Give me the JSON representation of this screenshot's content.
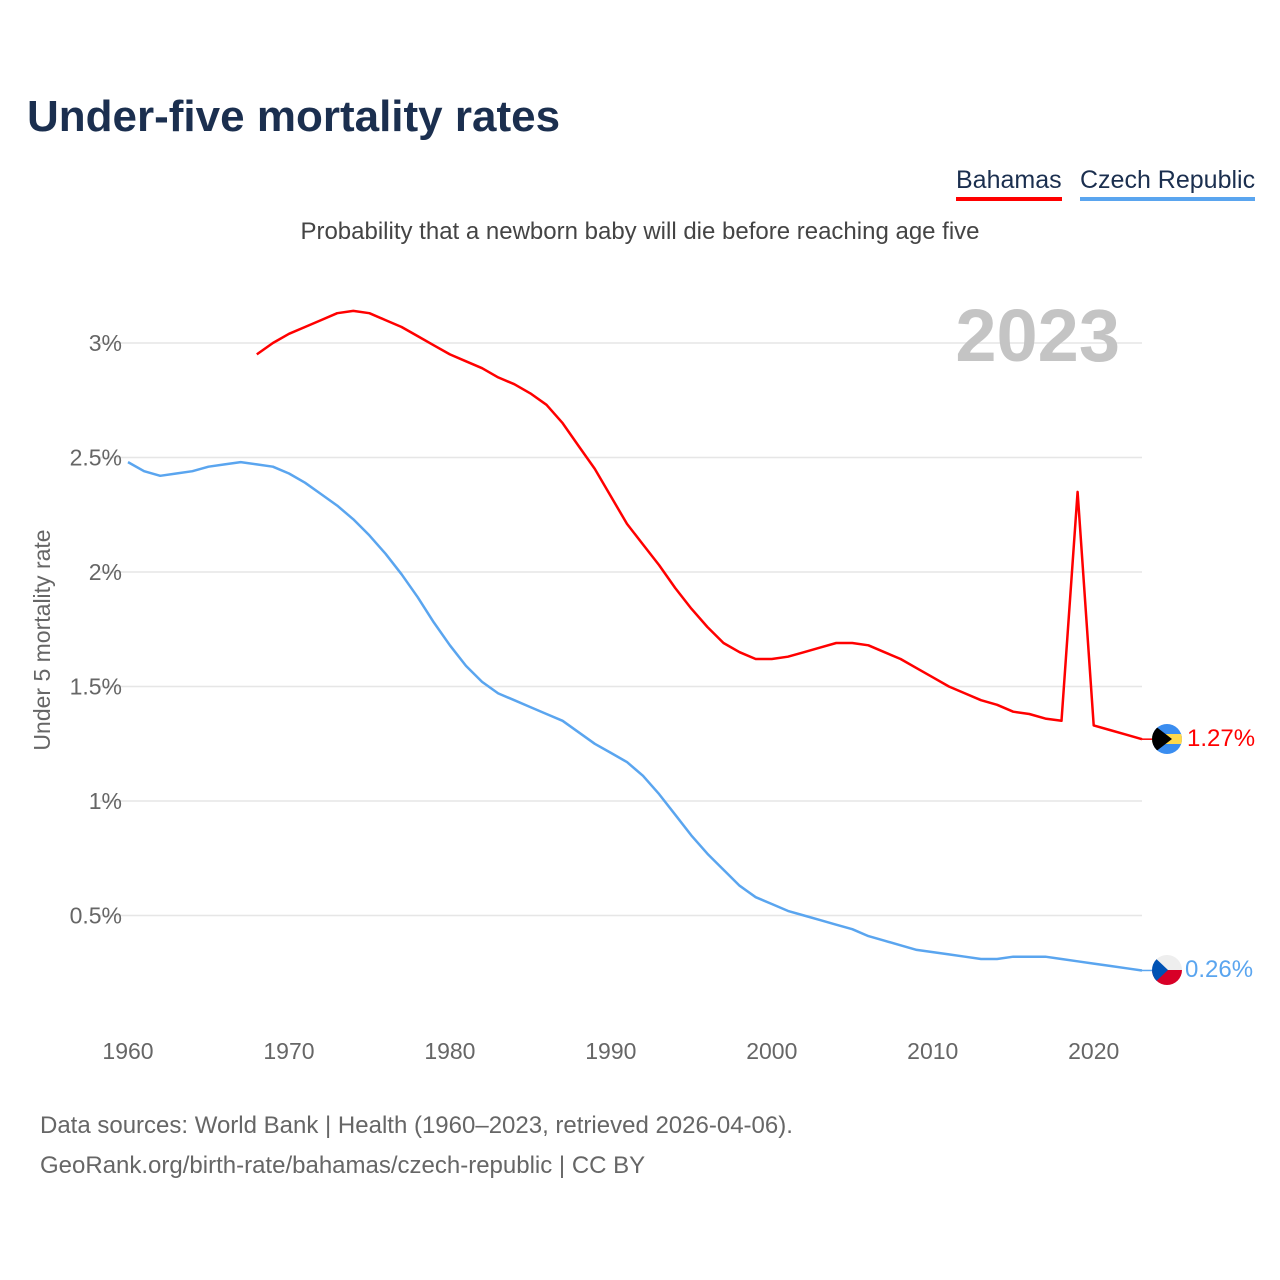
{
  "title": "Under-five mortality rates",
  "subtitle": "Probability that a newborn baby will die before reaching age five",
  "footer": {
    "line1": "Data sources: World Bank | Health (1960–2023, retrieved 2026-04-06).",
    "line2": "GeoRank.org/birth-rate/bahamas/czech-republic | CC BY"
  },
  "chart_data": {
    "type": "line",
    "title": "Under-five mortality rates",
    "ylabel": "Under 5 mortality rate",
    "xlabel": "",
    "year_label": "2023",
    "xlim": [
      1960,
      2023
    ],
    "ylim": [
      0,
      3.2
    ],
    "x_ticks": [
      1960,
      1970,
      1980,
      1990,
      2000,
      2010,
      2020
    ],
    "y_ticks": [
      {
        "v": 0.5,
        "label": "0.5%"
      },
      {
        "v": 1,
        "label": "1%"
      },
      {
        "v": 1.5,
        "label": "1.5%"
      },
      {
        "v": 2,
        "label": "2%"
      },
      {
        "v": 2.5,
        "label": "2.5%"
      },
      {
        "v": 3,
        "label": "3%"
      }
    ],
    "grid": true,
    "legend_position": "top-right",
    "series": [
      {
        "name": "Bahamas",
        "color": "#ff0000",
        "end_label": "1.27%",
        "start_year": 1968,
        "values": [
          2.95,
          3.0,
          3.04,
          3.07,
          3.1,
          3.13,
          3.14,
          3.13,
          3.1,
          3.07,
          3.03,
          2.99,
          2.95,
          2.92,
          2.89,
          2.85,
          2.82,
          2.78,
          2.73,
          2.65,
          2.55,
          2.45,
          2.33,
          2.21,
          2.12,
          2.03,
          1.93,
          1.84,
          1.76,
          1.69,
          1.65,
          1.62,
          1.62,
          1.63,
          1.65,
          1.67,
          1.69,
          1.69,
          1.68,
          1.65,
          1.62,
          1.58,
          1.54,
          1.5,
          1.47,
          1.44,
          1.42,
          1.39,
          1.38,
          1.36,
          1.35,
          2.35,
          1.33,
          1.31,
          1.29,
          1.27
        ]
      },
      {
        "name": "Czech Republic",
        "color": "#5aa5ef",
        "end_label": "0.26%",
        "start_year": 1960,
        "values": [
          2.48,
          2.44,
          2.42,
          2.43,
          2.44,
          2.46,
          2.47,
          2.48,
          2.47,
          2.46,
          2.43,
          2.39,
          2.34,
          2.29,
          2.23,
          2.16,
          2.08,
          1.99,
          1.89,
          1.78,
          1.68,
          1.59,
          1.52,
          1.47,
          1.44,
          1.41,
          1.38,
          1.35,
          1.3,
          1.25,
          1.21,
          1.17,
          1.11,
          1.03,
          0.94,
          0.85,
          0.77,
          0.7,
          0.63,
          0.58,
          0.55,
          0.52,
          0.5,
          0.48,
          0.46,
          0.44,
          0.41,
          0.39,
          0.37,
          0.35,
          0.34,
          0.33,
          0.32,
          0.31,
          0.31,
          0.32,
          0.32,
          0.32,
          0.31,
          0.3,
          0.29,
          0.28,
          0.27,
          0.26
        ]
      }
    ]
  }
}
